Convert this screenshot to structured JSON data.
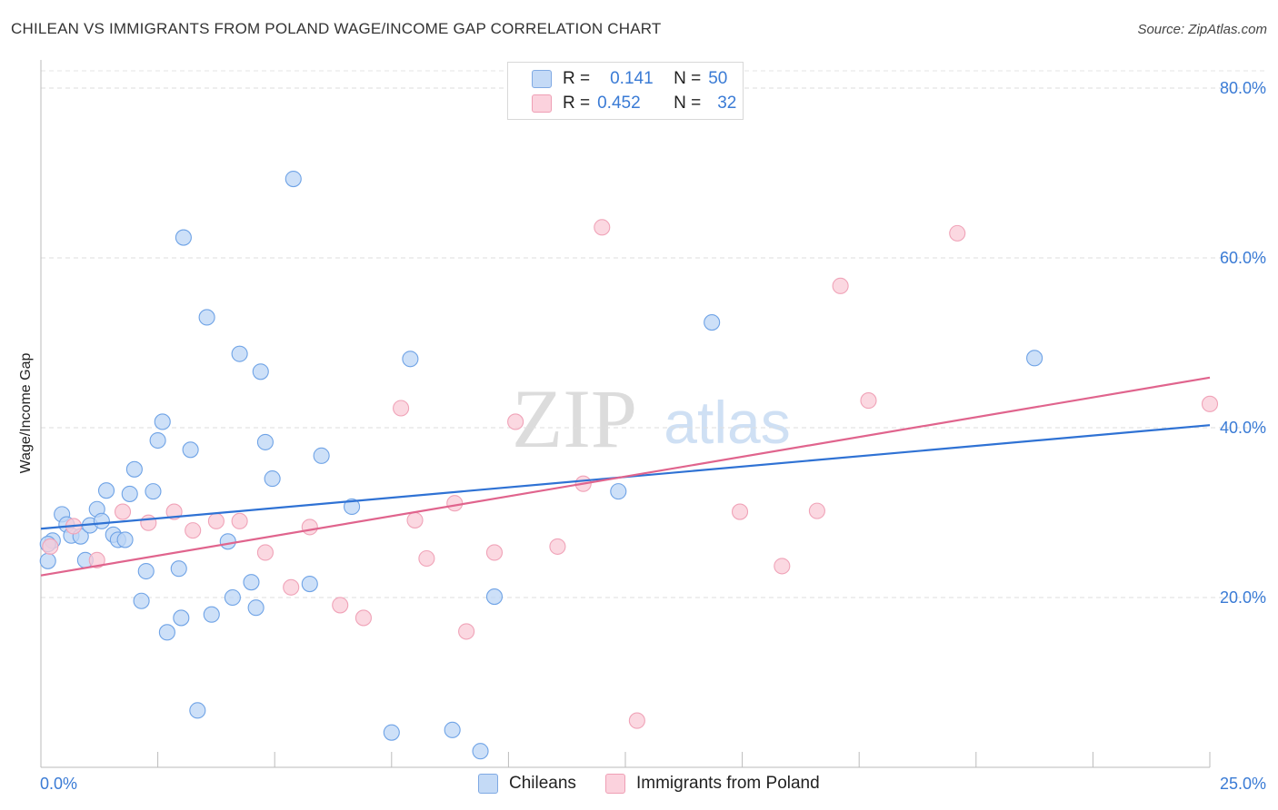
{
  "title": "CHILEAN VS IMMIGRANTS FROM POLAND WAGE/INCOME GAP CORRELATION CHART",
  "source": "Source: ZipAtlas.com",
  "watermark": {
    "zip": "ZIP",
    "atlas": "atlas"
  },
  "legend": {
    "rows": [
      {
        "r_label": "R =",
        "r_value": "0.141",
        "n_label": "N =",
        "n_value": "50",
        "color": "#aecbf1"
      },
      {
        "r_label": "R =",
        "r_value": "0.452",
        "n_label": "N =",
        "n_value": "32",
        "color": "#f7bccb"
      }
    ]
  },
  "chart_data": {
    "type": "scatter",
    "title": "CHILEAN VS IMMIGRANTS FROM POLAND WAGE/INCOME GAP CORRELATION CHART",
    "xlabel": "",
    "ylabel": "Wage/Income Gap",
    "xlim": [
      0,
      25
    ],
    "ylim": [
      0,
      80
    ],
    "x_ticks": [
      "0.0%",
      "25.0%"
    ],
    "y_ticks": [
      "20.0%",
      "40.0%",
      "60.0%",
      "80.0%"
    ],
    "grid": true,
    "legend_position": "bottom",
    "series": [
      {
        "name": "Chileans",
        "color": "#6fa3e6",
        "fill": "#bcd5f5",
        "trend": {
          "x": [
            0,
            25
          ],
          "y": [
            28.1,
            40.3
          ],
          "color": "#2f72d4"
        },
        "points": [
          [
            0.15,
            24.3
          ],
          [
            0.25,
            26.7
          ],
          [
            0.45,
            29.8
          ],
          [
            0.55,
            28.6
          ],
          [
            0.65,
            27.3
          ],
          [
            0.85,
            27.2
          ],
          [
            0.95,
            24.4
          ],
          [
            1.05,
            28.5
          ],
          [
            1.2,
            30.4
          ],
          [
            1.3,
            29.0
          ],
          [
            1.4,
            32.6
          ],
          [
            1.55,
            27.4
          ],
          [
            1.65,
            26.8
          ],
          [
            1.8,
            26.8
          ],
          [
            1.9,
            32.2
          ],
          [
            2.0,
            35.1
          ],
          [
            2.15,
            19.6
          ],
          [
            2.25,
            23.1
          ],
          [
            2.4,
            32.5
          ],
          [
            2.5,
            38.5
          ],
          [
            2.6,
            40.7
          ],
          [
            2.7,
            15.9
          ],
          [
            2.95,
            23.4
          ],
          [
            3.0,
            17.6
          ],
          [
            3.05,
            62.4
          ],
          [
            3.2,
            37.4
          ],
          [
            3.35,
            6.7
          ],
          [
            3.55,
            53.0
          ],
          [
            3.65,
            18.0
          ],
          [
            4.0,
            26.6
          ],
          [
            4.1,
            20.0
          ],
          [
            4.25,
            48.7
          ],
          [
            4.5,
            21.8
          ],
          [
            4.6,
            18.8
          ],
          [
            4.7,
            46.6
          ],
          [
            4.8,
            38.3
          ],
          [
            4.95,
            34.0
          ],
          [
            5.4,
            69.3
          ],
          [
            5.75,
            21.6
          ],
          [
            6.0,
            36.7
          ],
          [
            6.65,
            30.7
          ],
          [
            7.5,
            4.1
          ],
          [
            7.9,
            48.1
          ],
          [
            8.8,
            4.4
          ],
          [
            9.4,
            1.9
          ],
          [
            9.7,
            20.1
          ],
          [
            12.35,
            32.5
          ],
          [
            14.35,
            52.4
          ],
          [
            21.25,
            48.2
          ],
          [
            0.15,
            26.3
          ]
        ]
      },
      {
        "name": "Immigrants from Poland",
        "color": "#f0a3b8",
        "fill": "#f9cbd7",
        "trend": {
          "x": [
            0,
            25
          ],
          "y": [
            22.6,
            45.9
          ],
          "color": "#e0648d"
        },
        "points": [
          [
            0.2,
            26.0
          ],
          [
            0.7,
            28.4
          ],
          [
            1.2,
            24.4
          ],
          [
            1.75,
            30.1
          ],
          [
            2.3,
            28.8
          ],
          [
            2.85,
            30.1
          ],
          [
            3.25,
            27.9
          ],
          [
            3.75,
            29.0
          ],
          [
            4.25,
            29.0
          ],
          [
            4.8,
            25.3
          ],
          [
            5.35,
            21.2
          ],
          [
            5.75,
            28.3
          ],
          [
            6.4,
            19.1
          ],
          [
            6.9,
            17.6
          ],
          [
            7.7,
            42.3
          ],
          [
            8.0,
            29.1
          ],
          [
            8.25,
            24.6
          ],
          [
            8.85,
            31.1
          ],
          [
            9.1,
            16.0
          ],
          [
            9.7,
            25.3
          ],
          [
            10.15,
            40.7
          ],
          [
            11.05,
            26.0
          ],
          [
            11.6,
            33.4
          ],
          [
            12.0,
            63.6
          ],
          [
            12.75,
            5.5
          ],
          [
            14.95,
            30.1
          ],
          [
            15.85,
            23.7
          ],
          [
            16.6,
            30.2
          ],
          [
            17.1,
            56.7
          ],
          [
            17.7,
            43.2
          ],
          [
            19.6,
            62.9
          ],
          [
            25.0,
            42.8
          ]
        ]
      }
    ]
  }
}
